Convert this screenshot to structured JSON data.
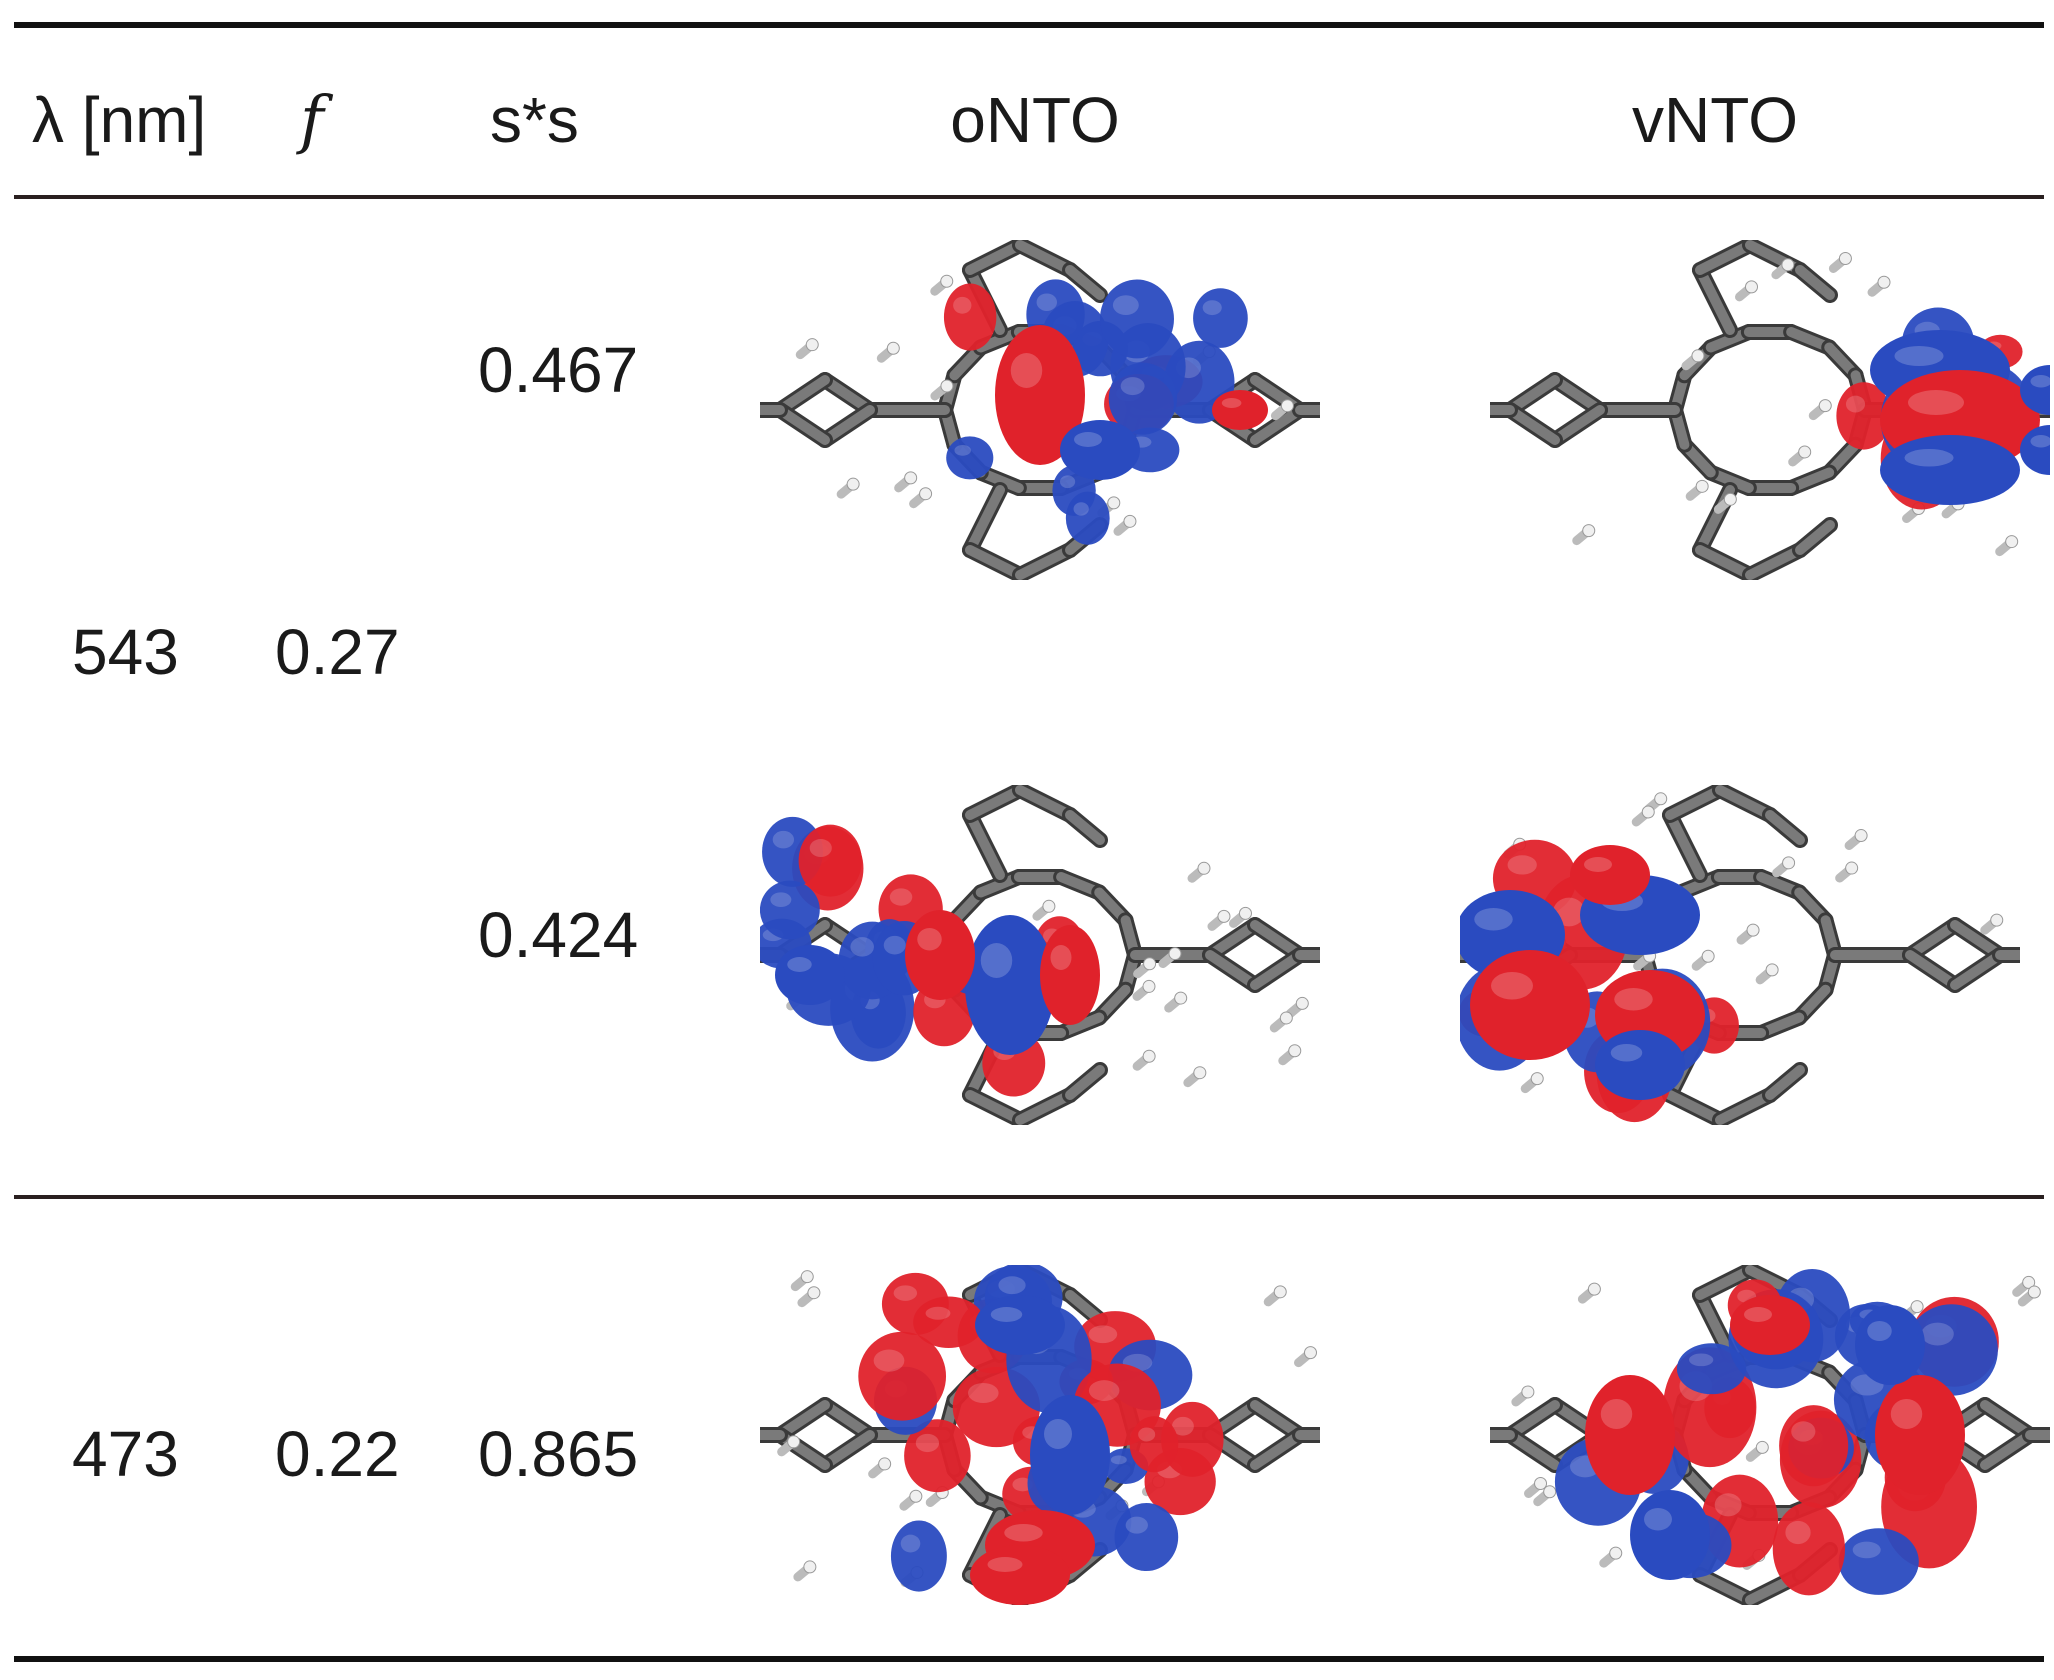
{
  "table": {
    "headers": {
      "lambda": "λ [nm]",
      "f": "f",
      "ss": "s*s",
      "onto": "oNTO",
      "vnto": "vNTO"
    },
    "rows": [
      {
        "lambda": "543",
        "f": "0.27",
        "sub": [
          {
            "ss": "0.467",
            "onto_image": "molecular-orbital-render",
            "vnto_image": "molecular-orbital-render"
          },
          {
            "ss": "0.424",
            "onto_image": "molecular-orbital-render",
            "vnto_image": "molecular-orbital-render"
          }
        ]
      },
      {
        "lambda": "473",
        "f": "0.22",
        "sub": [
          {
            "ss": "0.865",
            "onto_image": "molecular-orbital-render",
            "vnto_image": "molecular-orbital-render"
          }
        ]
      }
    ]
  },
  "colors": {
    "positive_lobe": "#e0222b",
    "negative_lobe": "#2a4bc0",
    "carbon": "#7a7a7a",
    "hydrogen": "#f0f0f0",
    "oxygen": "#e02020",
    "nitrogen": "#2a4bc0"
  }
}
